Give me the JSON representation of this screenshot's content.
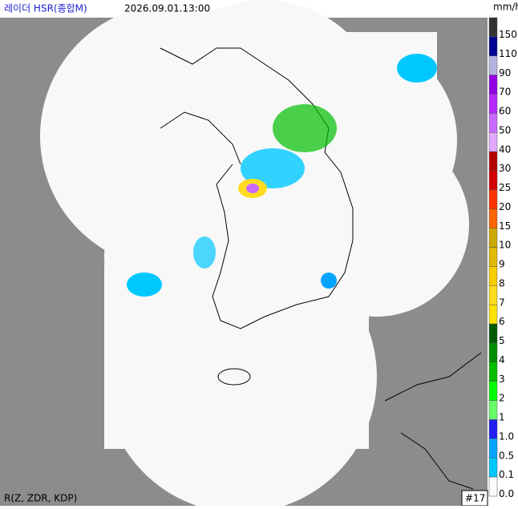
{
  "header": {
    "title": "레이더 HSR(종합M)",
    "timestamp": "2026.09.01.13:00",
    "unit": "mm/h"
  },
  "legend": [
    {
      "label": "150",
      "color": "#333333"
    },
    {
      "label": "110",
      "color": "#000390"
    },
    {
      "label": "90",
      "color": "#b3b4de"
    },
    {
      "label": "70",
      "color": "#9300e4"
    },
    {
      "label": "60",
      "color": "#b329ff"
    },
    {
      "label": "50",
      "color": "#c969ff"
    },
    {
      "label": "40",
      "color": "#e0a9ff"
    },
    {
      "label": "30",
      "color": "#b40000"
    },
    {
      "label": "25",
      "color": "#d20000"
    },
    {
      "label": "20",
      "color": "#ff3200"
    },
    {
      "label": "15",
      "color": "#ff6600"
    },
    {
      "label": "10",
      "color": "#ccaa00"
    },
    {
      "label": "9",
      "color": "#e0b900"
    },
    {
      "label": "8",
      "color": "#f9cd00"
    },
    {
      "label": "7",
      "color": "#ffdc1f"
    },
    {
      "label": "6",
      "color": "#ffe100"
    },
    {
      "label": "5",
      "color": "#005a00"
    },
    {
      "label": "4",
      "color": "#008c00"
    },
    {
      "label": "3",
      "color": "#00be00"
    },
    {
      "label": "2",
      "color": "#00ff00"
    },
    {
      "label": "1",
      "color": "#69fc69"
    },
    {
      "label": "1.0",
      "color": "#1f1ff0"
    },
    {
      "label": "0.5",
      "color": "#00a4ff"
    },
    {
      "label": "0.1",
      "color": "#00c8ff"
    },
    {
      "label": "0.0",
      "color": "#fafafa"
    }
  ],
  "footer": {
    "method": "R(Z, ZDR, KDP)",
    "count": "#17"
  }
}
